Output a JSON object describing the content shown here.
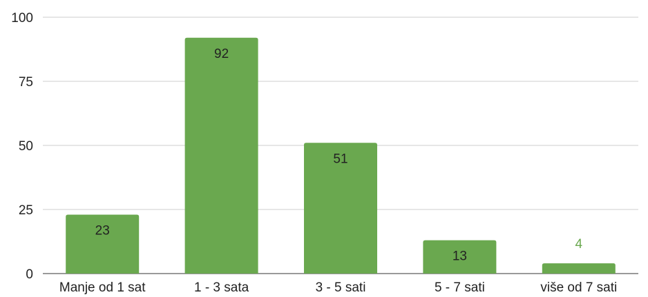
{
  "chart_data": {
    "type": "bar",
    "categories": [
      "Manje od 1 sat",
      "1 - 3 sata",
      "3 - 5 sati",
      "5 - 7 sati",
      "više od 7 sati"
    ],
    "values": [
      23,
      92,
      51,
      13,
      4
    ],
    "title": "",
    "xlabel": "",
    "ylabel": "",
    "ylim": [
      0,
      100
    ],
    "yticks": [
      0,
      25,
      50,
      75,
      100
    ],
    "grid": true,
    "bar_color": "#6aa84f",
    "data_label_inside_color": "#222222",
    "data_label_outside_color": "#6aa84f"
  }
}
